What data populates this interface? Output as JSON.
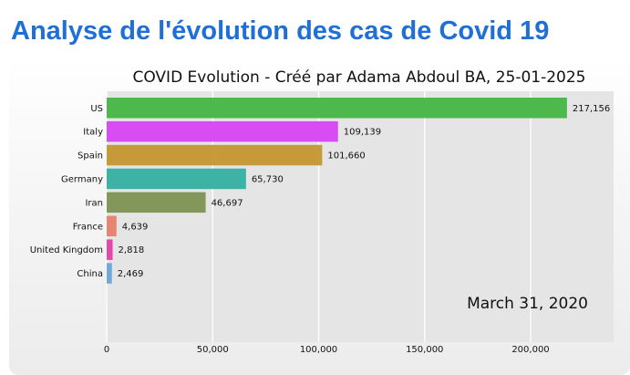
{
  "page": {
    "heading": "Analyse de l'évolution des cas de Covid 19"
  },
  "chart_data": {
    "type": "bar",
    "orientation": "horizontal",
    "title": "COVID Evolution - Créé par Adama Abdoul BA, 25-01-2025",
    "annotation": "March 31, 2020",
    "categories": [
      "US",
      "Italy",
      "Spain",
      "Germany",
      "Iran",
      "France",
      "United Kingdom",
      "China"
    ],
    "values": [
      217156,
      109139,
      101660,
      65730,
      46697,
      4639,
      2818,
      2469
    ],
    "value_labels": [
      "217,156",
      "109,139",
      "101,660",
      "65,730",
      "46,697",
      "4,639",
      "2,818",
      "2,469"
    ],
    "colors": [
      "#44b543",
      "#d743f3",
      "#c4962f",
      "#33b0a0",
      "#7d9253",
      "#e8806a",
      "#e33fa6",
      "#6ca5da"
    ],
    "x_ticks": [
      0,
      50000,
      100000,
      150000,
      200000
    ],
    "x_tick_labels": [
      "0",
      "50,000",
      "100,000",
      "150,000",
      "200,000"
    ],
    "xlim": [
      0,
      238000
    ],
    "grid": true,
    "background": "#e5e5e5"
  }
}
